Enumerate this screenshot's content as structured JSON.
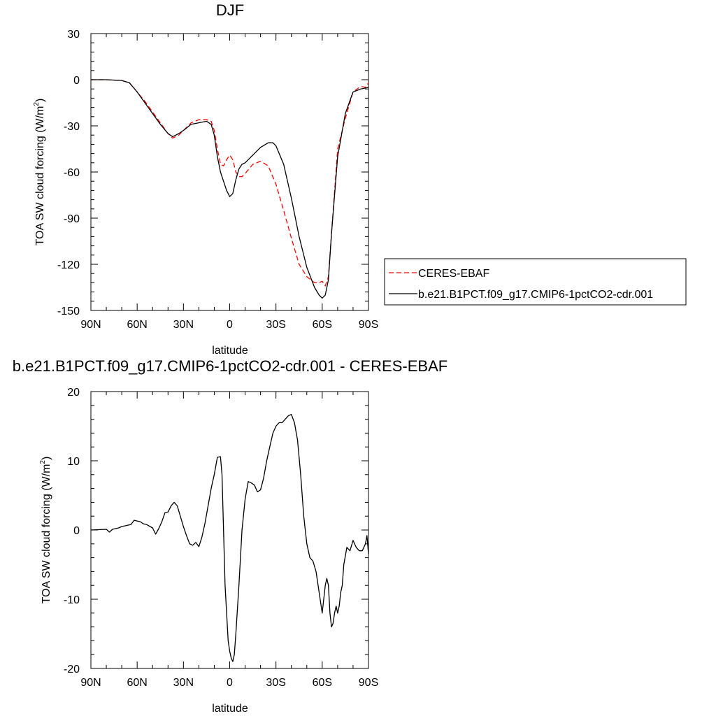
{
  "chart_data": [
    {
      "type": "line",
      "title": "DJF",
      "xlabel": "latitude",
      "ylabel": "TOA SW cloud forcing (W/m",
      "ylabel_sup": "2",
      "ylabel_tail": ")",
      "xlim": [
        90,
        -90
      ],
      "ylim": [
        -150,
        30
      ],
      "x_ticks": [
        {
          "value": 90,
          "label": "90N"
        },
        {
          "value": 60,
          "label": "60N"
        },
        {
          "value": 30,
          "label": "30N"
        },
        {
          "value": 0,
          "label": "0"
        },
        {
          "value": -30,
          "label": "30S"
        },
        {
          "value": -60,
          "label": "60S"
        },
        {
          "value": -90,
          "label": "90S"
        }
      ],
      "y_ticks": [
        {
          "value": 30,
          "label": "30"
        },
        {
          "value": 0,
          "label": "0"
        },
        {
          "value": -30,
          "label": "-30"
        },
        {
          "value": -60,
          "label": "-60"
        },
        {
          "value": -90,
          "label": "-90"
        },
        {
          "value": -120,
          "label": "-120"
        },
        {
          "value": -150,
          "label": "-150"
        }
      ],
      "grid": false,
      "legend": "right",
      "series": [
        {
          "name": "CERES-EBAF",
          "color": "#ff0000",
          "dash": "dashed",
          "x": [
            90,
            80,
            70,
            65,
            60,
            55,
            50,
            45,
            40,
            37,
            33,
            30,
            25,
            20,
            15,
            12,
            10,
            8,
            6,
            4,
            2,
            0,
            -2,
            -4,
            -6,
            -8,
            -10,
            -15,
            -20,
            -25,
            -30,
            -35,
            -40,
            -45,
            -50,
            -55,
            -58,
            -60,
            -62,
            -64,
            -66,
            -70,
            -75,
            -80,
            -84,
            -86,
            -88,
            -90
          ],
          "y": [
            0,
            0,
            -0.5,
            -2,
            -8,
            -14,
            -21,
            -28,
            -35,
            -38,
            -36,
            -33,
            -28,
            -26,
            -26,
            -27,
            -33,
            -45,
            -55,
            -56,
            -52,
            -49,
            -52,
            -60,
            -63,
            -63,
            -61,
            -55,
            -53,
            -56,
            -68,
            -85,
            -103,
            -120,
            -128,
            -132,
            -132,
            -131,
            -134,
            -128,
            -100,
            -45,
            -25,
            -8,
            -5,
            -4.5,
            -5,
            -2
          ]
        },
        {
          "name": "b.e21.B1PCT.f09_g17.CMIP6-1pctCO2-cdr.001",
          "color": "#000000",
          "dash": "solid",
          "x": [
            90,
            80,
            70,
            65,
            60,
            55,
            50,
            45,
            40,
            37,
            33,
            30,
            25,
            20,
            15,
            12,
            10,
            8,
            6,
            4,
            2,
            0,
            -2,
            -4,
            -6,
            -8,
            -10,
            -15,
            -20,
            -25,
            -28,
            -30,
            -35,
            -40,
            -45,
            -50,
            -55,
            -58,
            -60,
            -62,
            -64,
            -66,
            -70,
            -75,
            -80,
            -85,
            -90
          ],
          "y": [
            0,
            0,
            -0.5,
            -2,
            -8,
            -15,
            -22,
            -29,
            -35,
            -37,
            -35,
            -33,
            -29,
            -28,
            -27,
            -29,
            -36,
            -50,
            -60,
            -66,
            -72,
            -76,
            -74,
            -65,
            -58,
            -55,
            -54,
            -49,
            -44,
            -41,
            -41,
            -43,
            -55,
            -77,
            -102,
            -122,
            -135,
            -140,
            -142,
            -140,
            -130,
            -100,
            -50,
            -22,
            -8,
            -6,
            -5
          ]
        }
      ]
    },
    {
      "type": "line",
      "title": "b.e21.B1PCT.f09_g17.CMIP6-1pctCO2-cdr.001 - CERES-EBAF",
      "xlabel": "latitude",
      "ylabel": "TOA SW cloud forcing (W/m",
      "ylabel_sup": "2",
      "ylabel_tail": ")",
      "xlim": [
        90,
        -90
      ],
      "ylim": [
        -20,
        20
      ],
      "x_ticks": [
        {
          "value": 90,
          "label": "90N"
        },
        {
          "value": 60,
          "label": "60N"
        },
        {
          "value": 30,
          "label": "30N"
        },
        {
          "value": 0,
          "label": "0"
        },
        {
          "value": -30,
          "label": "30S"
        },
        {
          "value": -60,
          "label": "60S"
        },
        {
          "value": -90,
          "label": "90S"
        }
      ],
      "y_ticks": [
        {
          "value": 20,
          "label": "20"
        },
        {
          "value": 10,
          "label": "10"
        },
        {
          "value": 0,
          "label": "0"
        },
        {
          "value": -10,
          "label": "-10"
        },
        {
          "value": -20,
          "label": "-20"
        }
      ],
      "grid": false,
      "legend": "none",
      "series": [
        {
          "name": "",
          "color": "#000000",
          "dash": "solid",
          "x": [
            90,
            80,
            78,
            76,
            72,
            70,
            68,
            64,
            62,
            58,
            56,
            54,
            50,
            48,
            46,
            44,
            42,
            40,
            38,
            36,
            34,
            32,
            30,
            28,
            26,
            24,
            22,
            20,
            18,
            16,
            14,
            12,
            10,
            8,
            6,
            5,
            4,
            3,
            2,
            1,
            0,
            -1,
            -2,
            -3,
            -4,
            -6,
            -8,
            -10,
            -12,
            -14,
            -16,
            -18,
            -20,
            -22,
            -24,
            -26,
            -28,
            -30,
            -32,
            -34,
            -36,
            -38,
            -40,
            -42,
            -44,
            -46,
            -48,
            -50,
            -52,
            -54,
            -56,
            -58,
            -60,
            -62,
            -63,
            -64,
            -65,
            -66,
            -67,
            -68,
            -69,
            -70,
            -71,
            -72,
            -73,
            -74,
            -76,
            -78,
            -80,
            -82,
            -84,
            -86,
            -88,
            -89,
            -90
          ],
          "y": [
            0,
            0.1,
            -0.3,
            0.1,
            0.3,
            0.5,
            0.6,
            0.8,
            1.4,
            1.2,
            0.9,
            0.8,
            0.3,
            -0.6,
            0.2,
            1.2,
            2.5,
            2.6,
            3.5,
            4.0,
            3.5,
            2.0,
            0.5,
            -0.8,
            -2.0,
            -2.2,
            -1.8,
            -2.4,
            -1.0,
            1.0,
            3.5,
            6.0,
            8.0,
            10.5,
            10.6,
            8.0,
            0,
            -8,
            -12,
            -16,
            -17.5,
            -18.5,
            -19,
            -18,
            -15,
            -8,
            0,
            4.5,
            7,
            6.8,
            6.5,
            5.5,
            5.8,
            7.5,
            10,
            12,
            14,
            15,
            15.5,
            15.5,
            16,
            16.5,
            16.7,
            15.5,
            13,
            8,
            2,
            -2,
            -4,
            -4.5,
            -6,
            -9,
            -12,
            -8,
            -7,
            -8,
            -12,
            -14,
            -13.5,
            -12,
            -11,
            -12,
            -11,
            -9,
            -8,
            -5,
            -2.5,
            -3,
            -1.5,
            -2.5,
            -3,
            -3,
            -2,
            -0.8,
            -3.5
          ]
        }
      ]
    }
  ],
  "colors": {
    "background": "#ffffff",
    "axis": "#000000",
    "model": "#000000",
    "obs": "#ff0000"
  }
}
